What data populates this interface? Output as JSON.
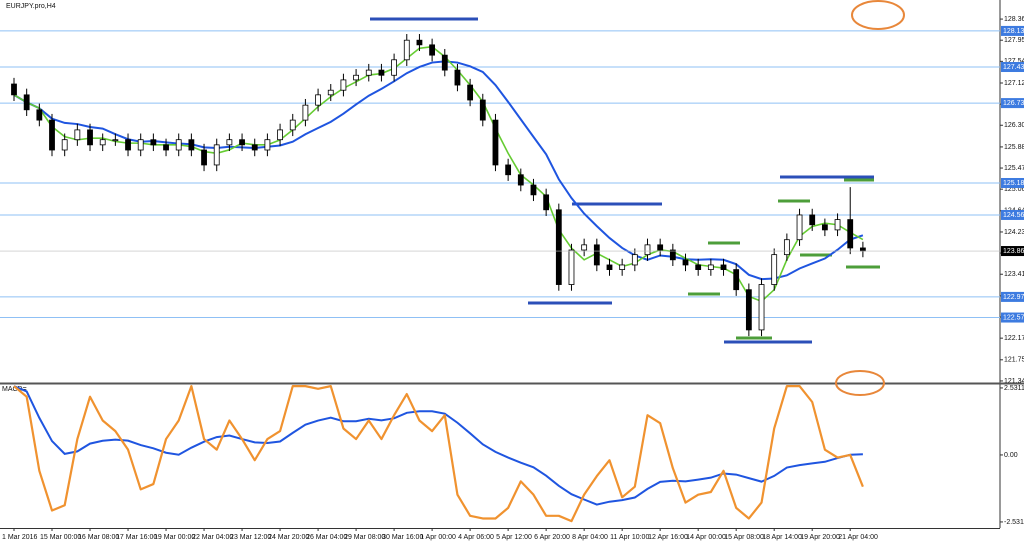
{
  "chart_data": {
    "type": "candlestick",
    "title": "EURJPY.pro,H4",
    "categories": [
      "1 Mar 2016",
      null,
      null,
      "15 Mar 00:00",
      null,
      null,
      "16 Mar 08:00",
      null,
      null,
      "17 Mar 16:00",
      null,
      null,
      "19 Mar 00:00",
      null,
      null,
      "22 Mar 04:00",
      null,
      null,
      "23 Mar 12:00",
      null,
      null,
      "24 Mar 20:00",
      null,
      null,
      "26 Mar 04:00",
      null,
      null,
      "29 Mar 08:00",
      null,
      null,
      "30 Mar 16:00",
      null,
      null,
      "1 Apr 00:00",
      null,
      null,
      "4 Apr 06:00",
      null,
      null,
      "5 Apr 12:00",
      null,
      null,
      "6 Apr 20:00",
      null,
      null,
      "8 Apr 04:00",
      null,
      null,
      "11 Apr 10:00",
      null,
      null,
      "12 Apr 16:00",
      null,
      null,
      "14 Apr 00:00",
      null,
      null,
      "15 Apr 08:00",
      null,
      null,
      "18 Apr 14:00",
      null,
      null,
      "19 Apr 20:00",
      null,
      null,
      "21 Apr 04:00",
      null
    ],
    "open": [
      127.1,
      126.89,
      126.6,
      126.4,
      125.82,
      126.02,
      126.21,
      125.92,
      126.02,
      126.02,
      125.82,
      126.02,
      125.92,
      125.82,
      126.02,
      125.82,
      125.53,
      125.92,
      126.02,
      125.92,
      125.82,
      126.02,
      126.21,
      126.4,
      126.69,
      126.89,
      126.98,
      127.18,
      127.27,
      127.37,
      127.27,
      127.57,
      127.95,
      127.86,
      127.66,
      127.37,
      127.08,
      126.79,
      126.4,
      125.53,
      125.34,
      125.14,
      124.95,
      124.66,
      123.21,
      123.88,
      123.98,
      123.59,
      123.5,
      123.59,
      123.79,
      123.98,
      123.88,
      123.69,
      123.59,
      123.5,
      123.59,
      123.5,
      123.11,
      122.33,
      123.21,
      123.79,
      124.08,
      124.56,
      124.37,
      124.27,
      124.47,
      123.92
    ],
    "high": [
      127.22,
      127.01,
      126.72,
      126.52,
      126.14,
      126.33,
      126.33,
      126.14,
      126.14,
      126.14,
      126.14,
      126.14,
      126.04,
      126.14,
      126.14,
      125.94,
      126.04,
      126.14,
      126.14,
      126.04,
      126.14,
      126.33,
      126.52,
      126.81,
      127.01,
      127.1,
      127.3,
      127.39,
      127.49,
      127.49,
      127.69,
      128.07,
      128.07,
      127.98,
      127.78,
      127.49,
      127.2,
      126.91,
      126.52,
      125.65,
      125.46,
      125.26,
      125.07,
      124.78,
      124.0,
      124.1,
      124.1,
      123.71,
      123.71,
      123.91,
      124.1,
      124.1,
      124.0,
      123.81,
      123.71,
      123.71,
      123.71,
      123.62,
      123.23,
      123.33,
      123.91,
      124.2,
      124.68,
      124.68,
      124.49,
      124.59,
      125.1,
      124.04
    ],
    "low": [
      126.77,
      126.48,
      126.28,
      125.7,
      125.7,
      125.9,
      125.8,
      125.8,
      125.9,
      125.7,
      125.7,
      125.8,
      125.7,
      125.7,
      125.7,
      125.41,
      125.41,
      125.8,
      125.8,
      125.7,
      125.7,
      125.9,
      126.09,
      126.28,
      126.57,
      126.77,
      126.86,
      127.06,
      127.15,
      127.15,
      127.15,
      127.45,
      127.74,
      127.54,
      127.25,
      126.96,
      126.67,
      126.28,
      125.41,
      125.22,
      125.02,
      124.83,
      124.54,
      123.09,
      123.09,
      123.76,
      123.47,
      123.38,
      123.38,
      123.47,
      123.67,
      123.76,
      123.57,
      123.47,
      123.38,
      123.38,
      123.38,
      122.99,
      122.21,
      122.21,
      123.09,
      123.67,
      123.96,
      124.25,
      124.15,
      124.15,
      123.8,
      123.74
    ],
    "close": [
      126.89,
      126.6,
      126.4,
      125.82,
      126.02,
      126.21,
      125.92,
      126.02,
      126.02,
      125.82,
      126.02,
      125.92,
      125.82,
      126.02,
      125.82,
      125.53,
      125.92,
      126.02,
      125.92,
      125.82,
      126.02,
      126.21,
      126.4,
      126.69,
      126.89,
      126.98,
      127.18,
      127.27,
      127.37,
      127.27,
      127.57,
      127.95,
      127.86,
      127.66,
      127.37,
      127.08,
      126.79,
      126.4,
      125.53,
      125.34,
      125.14,
      124.95,
      124.66,
      123.21,
      123.88,
      123.98,
      123.59,
      123.5,
      123.59,
      123.79,
      123.98,
      123.88,
      123.69,
      123.59,
      123.5,
      123.59,
      123.5,
      123.11,
      122.33,
      123.21,
      123.79,
      124.08,
      124.56,
      124.37,
      124.27,
      124.47,
      123.92,
      123.86
    ],
    "ylim": [
      121.3,
      128.73
    ],
    "yticks": [
      {
        "value": 128.36,
        "label": "128.360"
      },
      {
        "value": 127.95,
        "label": "127.950"
      },
      {
        "value": 127.54,
        "label": "127.540"
      },
      {
        "value": 127.12,
        "label": "127.120"
      },
      {
        "value": 126.71,
        "label": "126.710"
      },
      {
        "value": 126.3,
        "label": "126.300"
      },
      {
        "value": 125.88,
        "label": "125.880"
      },
      {
        "value": 125.47,
        "label": "125.470"
      },
      {
        "value": 125.06,
        "label": "125.060"
      },
      {
        "value": 124.64,
        "label": "124.640"
      },
      {
        "value": 124.23,
        "label": "124.230"
      },
      {
        "value": 123.82,
        "label": "123.820"
      },
      {
        "value": 123.41,
        "label": "123.410"
      },
      {
        "value": 122.99,
        "label": "122.990"
      },
      {
        "value": 122.58,
        "label": "122.580"
      },
      {
        "value": 122.17,
        "label": "122.170"
      },
      {
        "value": 121.75,
        "label": "121.750"
      },
      {
        "value": 121.34,
        "label": "121.340"
      }
    ],
    "levels": [
      {
        "value": 128.13,
        "label": "128.130"
      },
      {
        "value": 127.43,
        "label": "127.430"
      },
      {
        "value": 126.73,
        "label": "126.730"
      },
      {
        "value": 125.18,
        "label": "125.180"
      },
      {
        "value": 124.56,
        "label": "124.560"
      },
      {
        "value": 122.97,
        "label": "122.970"
      },
      {
        "value": 122.57,
        "label": "122.570"
      }
    ],
    "current_price": {
      "value": 123.86,
      "label": "123.860"
    },
    "indicator": {
      "title": "MACD=",
      "color": "#f0922f",
      "values": [
        2.6,
        2.2,
        -0.6,
        -2.1,
        -1.9,
        0.6,
        2.2,
        1.3,
        0.9,
        0.2,
        -1.3,
        -1.1,
        0.6,
        1.3,
        2.6,
        0.6,
        0.2,
        1.3,
        0.6,
        -0.2,
        0.6,
        0.9,
        2.6,
        2.6,
        2.5,
        2.6,
        1.0,
        0.6,
        1.3,
        0.6,
        1.5,
        2.3,
        1.3,
        0.9,
        1.5,
        -1.5,
        -2.3,
        -2.4,
        -2.4,
        -2.0,
        -1.0,
        -1.5,
        -2.3,
        -2.3,
        -2.5,
        -1.5,
        -0.8,
        -0.2,
        -1.6,
        -1.2,
        1.5,
        1.2,
        -0.5,
        -1.8,
        -1.5,
        -1.4,
        -0.6,
        -2.0,
        -2.4,
        -1.8,
        1.0,
        2.6,
        2.6,
        2.0,
        0.2,
        -0.1,
        0.0,
        -1.2
      ],
      "ylim": [
        -2.76,
        2.68
      ],
      "yticks": [
        {
          "value": 2.5311,
          "label": "2.5311"
        },
        {
          "value": 0,
          "label": "0.00"
        },
        {
          "value": -2.5311,
          "label": "-2.5311"
        }
      ]
    }
  }
}
